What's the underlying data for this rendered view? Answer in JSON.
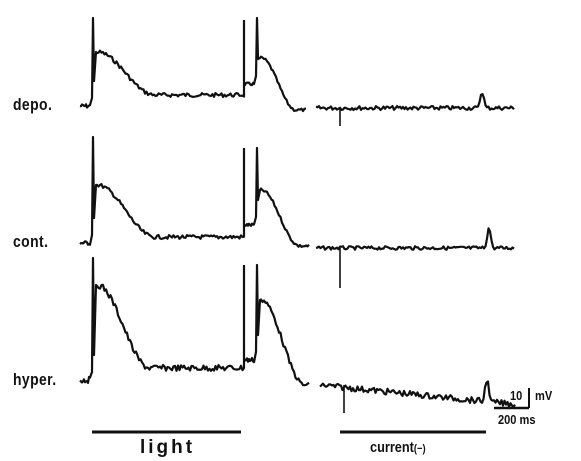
{
  "rows": [
    {
      "label": "depo."
    },
    {
      "label": "cont."
    },
    {
      "label": "hyper."
    }
  ],
  "stimulus_bars": {
    "light": "light",
    "current": "current",
    "current_sign": "(−)"
  },
  "scale_bar": {
    "voltage": "10",
    "voltage_unit": "mV",
    "time": "200 ms"
  }
}
